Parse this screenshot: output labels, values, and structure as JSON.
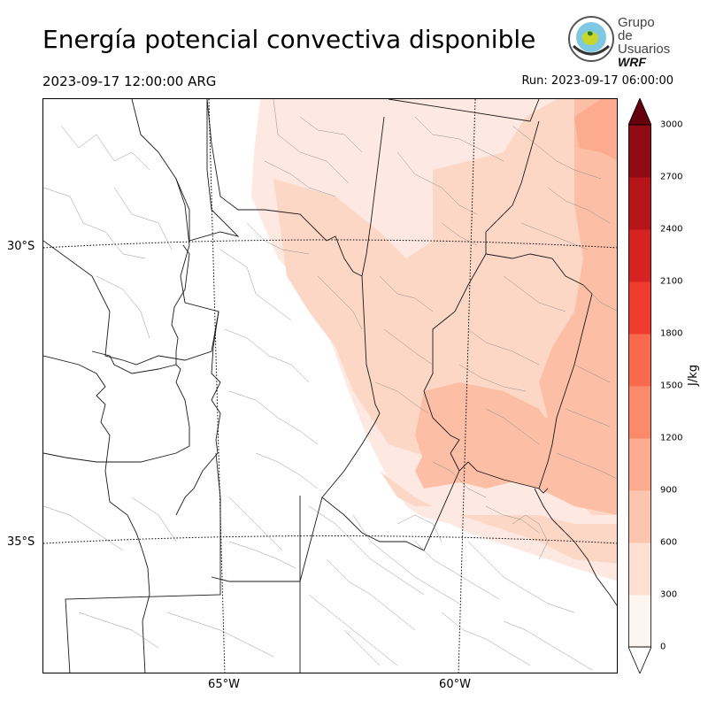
{
  "header": {
    "title": "Energía potencial convectiva disponible",
    "valid_time": "2023-09-17 12:00:00 ARG",
    "run_time": "Run: 2023-09-17 06:00:00"
  },
  "logo": {
    "line1": "Grupo de",
    "line2": "Usuarios",
    "line3": "WRF"
  },
  "map": {
    "lat_labels": [
      "30°S",
      "35°S"
    ],
    "lon_labels": [
      "65°W",
      "60°W"
    ]
  },
  "colorbar": {
    "unit": "J/kg",
    "ticks": [
      "0",
      "300",
      "600",
      "900",
      "1200",
      "1500",
      "1800",
      "2100",
      "2400",
      "2700",
      "3000"
    ],
    "levels": [
      0,
      300,
      600,
      900,
      1200,
      1500,
      1800,
      2100,
      2400,
      2700,
      3000
    ],
    "colors": [
      "#fff5f0",
      "#fee0d2",
      "#fcc5b0",
      "#fcab8f",
      "#fb8a6a",
      "#f96a4c",
      "#ef3b2c",
      "#d52321",
      "#b51419",
      "#8f0b13",
      "#67000d"
    ],
    "extend": "both"
  }
}
